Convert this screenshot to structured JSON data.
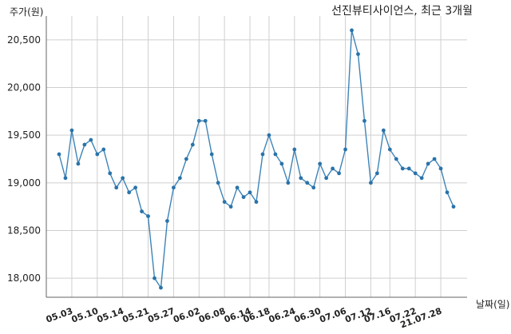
{
  "chart_data": {
    "type": "line",
    "title": "선진뷰티사이언스, 최근 3개월",
    "ylabel": "주가(원)",
    "xlabel": "날짜(일)",
    "ylim": [
      17800,
      20750
    ],
    "yticks": [
      18000,
      18500,
      19000,
      19500,
      20000,
      20500
    ],
    "ytick_labels": [
      "18,000",
      "18,500",
      "19,000",
      "19,500",
      "20,000",
      "20,500"
    ],
    "xtick_labels": [
      "05.03",
      "05.10",
      "05.14",
      "05.21",
      "05.27",
      "06.02",
      "06.08",
      "06.14",
      "06.18",
      "06.24",
      "06.30",
      "07.06",
      "07.12",
      "07.16",
      "07.22",
      "21.07.28"
    ],
    "xtick_index": [
      2,
      6,
      10,
      14,
      18,
      22,
      26,
      30,
      33,
      37,
      41,
      45,
      49,
      52,
      56,
      60
    ],
    "grid": true,
    "series": [
      {
        "values": [
          19300,
          19050,
          19550,
          19200,
          19400,
          19450,
          19300,
          19350,
          19100,
          18950,
          19050,
          18900,
          18950,
          18700,
          18650,
          18000,
          17900,
          18600,
          18950,
          19050,
          19250,
          19400,
          19650,
          19650,
          19300,
          19000,
          18800,
          18750,
          18950,
          18850,
          18900,
          18800,
          19300,
          19500,
          19300,
          19200,
          19000,
          19350,
          19050,
          19000,
          18950,
          19200,
          19050,
          19150,
          19100,
          19350,
          20600,
          20350,
          19650,
          19000,
          19100,
          19550,
          19350,
          19250,
          19150,
          19150,
          19100,
          19050,
          19200,
          19250,
          19150,
          18900,
          18750
        ],
        "color": "#3d84b8"
      }
    ]
  }
}
